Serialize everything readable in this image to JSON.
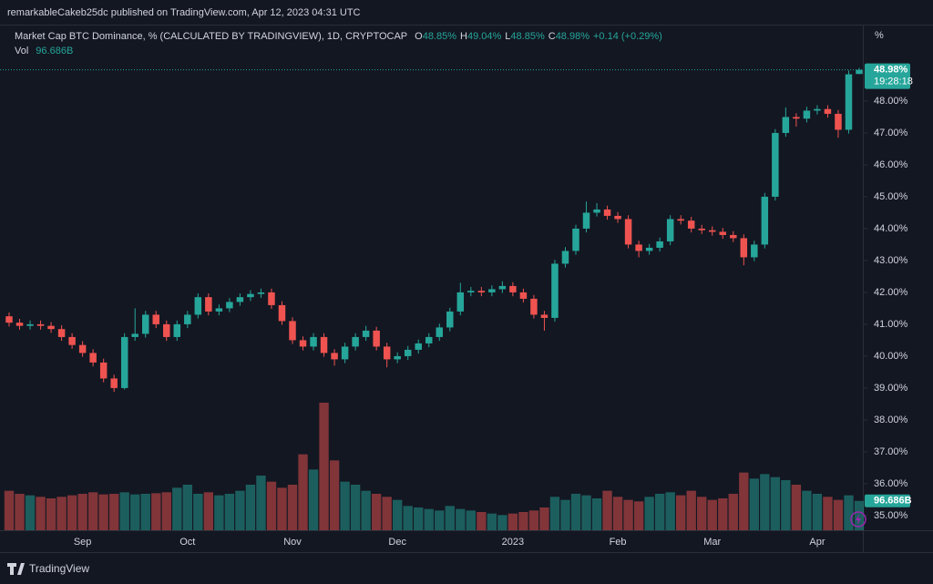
{
  "header": {
    "publisher": "remarkableCakeb25dc published on TradingView.com, Apr 12, 2023 04:31 UTC",
    "brand": "TradingView"
  },
  "chart_data": {
    "type": "candlestick",
    "title": "Market Cap BTC Dominance, % (CALCULATED BY TRADINGVIEW), 1D, CRYPTOCAP",
    "legend": [
      {
        "key": "O",
        "label": "48.85%"
      },
      {
        "key": "H",
        "label": "49.04%"
      },
      {
        "key": "L",
        "label": "48.85%"
      },
      {
        "key": "C",
        "label": "48.98%"
      }
    ],
    "change": "+0.14 (+0.29%)",
    "volume_name": "Vol",
    "volume_legend": "96.686B",
    "y_unit": "%",
    "up_color": "#26a69a",
    "down_color": "#ef5350",
    "categories": [
      null,
      null,
      null,
      null,
      null,
      null,
      null,
      "Sep",
      null,
      null,
      null,
      null,
      null,
      null,
      null,
      null,
      null,
      "Oct",
      null,
      null,
      null,
      null,
      null,
      null,
      null,
      null,
      null,
      "Nov",
      null,
      null,
      null,
      null,
      null,
      null,
      null,
      null,
      null,
      "Dec",
      null,
      null,
      null,
      null,
      null,
      null,
      null,
      null,
      null,
      null,
      "2023",
      null,
      null,
      null,
      null,
      null,
      null,
      null,
      null,
      null,
      "Feb",
      null,
      null,
      null,
      null,
      null,
      null,
      null,
      null,
      "Mar",
      null,
      null,
      null,
      null,
      null,
      null,
      null,
      null,
      null,
      "Apr",
      null,
      null,
      null,
      null
    ],
    "open": [
      41.25,
      41.05,
      40.95,
      41.0,
      40.95,
      40.85,
      40.6,
      40.35,
      40.1,
      39.8,
      39.3,
      39.0,
      40.6,
      40.7,
      41.3,
      41.0,
      40.6,
      41.0,
      41.3,
      41.85,
      41.4,
      41.5,
      41.7,
      41.85,
      41.95,
      42.0,
      41.6,
      41.1,
      40.5,
      40.3,
      40.6,
      40.1,
      39.9,
      40.3,
      40.6,
      40.8,
      40.3,
      39.9,
      40.0,
      40.2,
      40.4,
      40.6,
      40.9,
      41.4,
      42.0,
      42.05,
      42.0,
      42.1,
      42.2,
      42.0,
      41.8,
      41.3,
      41.2,
      42.9,
      43.3,
      44.0,
      44.5,
      44.6,
      44.4,
      44.3,
      43.5,
      43.3,
      43.4,
      43.6,
      44.3,
      44.25,
      44.0,
      43.95,
      43.9,
      43.8,
      43.7,
      43.1,
      43.5,
      45.0,
      47.0,
      47.5,
      47.45,
      47.7,
      47.75,
      47.6,
      47.1,
      48.85
    ],
    "high": [
      41.37,
      41.17,
      41.12,
      41.12,
      41.07,
      40.97,
      40.72,
      40.47,
      40.22,
      39.92,
      39.42,
      40.72,
      41.5,
      41.42,
      41.42,
      41.12,
      41.12,
      41.42,
      41.97,
      41.97,
      41.62,
      41.82,
      41.97,
      42.07,
      42.12,
      42.12,
      41.72,
      41.22,
      40.62,
      40.72,
      40.72,
      40.22,
      40.42,
      40.72,
      40.95,
      40.92,
      40.42,
      40.12,
      40.32,
      40.52,
      40.72,
      41.02,
      41.52,
      42.3,
      42.17,
      42.17,
      42.22,
      42.35,
      42.32,
      42.12,
      41.92,
      41.42,
      43.02,
      43.42,
      44.12,
      44.85,
      44.8,
      44.72,
      44.52,
      44.42,
      43.62,
      43.52,
      43.72,
      44.42,
      44.42,
      44.37,
      44.12,
      44.07,
      44.02,
      43.92,
      43.82,
      43.62,
      45.12,
      47.12,
      47.8,
      47.62,
      47.82,
      47.87,
      47.87,
      47.72,
      48.96,
      49.04
    ],
    "low": [
      40.93,
      40.83,
      40.83,
      40.83,
      40.73,
      40.48,
      40.23,
      39.98,
      39.68,
      39.18,
      38.88,
      38.95,
      40.48,
      40.58,
      40.88,
      40.48,
      40.48,
      40.88,
      41.18,
      41.28,
      41.28,
      41.38,
      41.58,
      41.73,
      41.83,
      41.48,
      40.98,
      40.38,
      40.18,
      40.18,
      39.98,
      39.7,
      39.78,
      40.18,
      40.48,
      40.18,
      39.65,
      39.78,
      39.88,
      40.08,
      40.28,
      40.48,
      40.78,
      41.28,
      41.88,
      41.88,
      41.88,
      41.98,
      41.88,
      41.68,
      41.18,
      40.8,
      41.08,
      42.78,
      43.18,
      43.88,
      44.38,
      44.28,
      44.18,
      43.38,
      43.1,
      43.18,
      43.28,
      43.48,
      44.13,
      43.88,
      43.83,
      43.78,
      43.68,
      43.58,
      42.85,
      42.98,
      43.38,
      44.88,
      46.88,
      47.2,
      47.33,
      47.58,
      47.48,
      46.85,
      46.98,
      48.85
    ],
    "close": [
      41.05,
      40.95,
      41.0,
      40.95,
      40.85,
      40.6,
      40.35,
      40.1,
      39.8,
      39.3,
      39.0,
      40.6,
      40.7,
      41.3,
      41.0,
      40.6,
      41.0,
      41.3,
      41.85,
      41.4,
      41.5,
      41.7,
      41.85,
      41.95,
      42.0,
      41.6,
      41.1,
      40.5,
      40.3,
      40.6,
      40.1,
      39.9,
      40.3,
      40.6,
      40.8,
      40.3,
      39.9,
      40.0,
      40.2,
      40.4,
      40.6,
      40.9,
      41.4,
      42.0,
      42.05,
      42.0,
      42.1,
      42.2,
      42.0,
      41.8,
      41.3,
      41.2,
      42.9,
      43.3,
      44.0,
      44.5,
      44.6,
      44.4,
      44.3,
      43.5,
      43.3,
      43.4,
      43.6,
      44.3,
      44.25,
      44.0,
      43.95,
      43.9,
      43.8,
      43.7,
      43.1,
      43.5,
      45.0,
      47.0,
      47.5,
      47.45,
      47.7,
      47.75,
      47.6,
      47.1,
      48.84,
      48.98
    ],
    "volume": [
      130,
      120,
      115,
      110,
      105,
      110,
      115,
      120,
      125,
      118,
      120,
      125,
      118,
      120,
      122,
      125,
      140,
      150,
      120,
      125,
      115,
      120,
      130,
      150,
      180,
      160,
      140,
      150,
      250,
      200,
      420,
      230,
      160,
      150,
      130,
      120,
      110,
      100,
      80,
      75,
      70,
      65,
      80,
      70,
      65,
      60,
      55,
      50,
      55,
      60,
      65,
      75,
      110,
      100,
      120,
      115,
      105,
      130,
      110,
      100,
      95,
      110,
      120,
      125,
      115,
      130,
      110,
      100,
      105,
      120,
      190,
      170,
      185,
      175,
      165,
      150,
      130,
      120,
      110,
      100,
      115,
      96.686
    ],
    "last_price_label": "48.98%",
    "countdown": "19:28:18",
    "ylim": [
      34.54,
      50.37
    ],
    "yticks": [
      {
        "value": 35,
        "label": "35.00%"
      },
      {
        "value": 36,
        "label": "36.00%"
      },
      {
        "value": 37,
        "label": "37.00%"
      },
      {
        "value": 38,
        "label": "38.00%"
      },
      {
        "value": 39,
        "label": "39.00%"
      },
      {
        "value": 40,
        "label": "40.00%"
      },
      {
        "value": 41,
        "label": "41.00%"
      },
      {
        "value": 42,
        "label": "42.00%"
      },
      {
        "value": 43,
        "label": "43.00%"
      },
      {
        "value": 44,
        "label": "44.00%"
      },
      {
        "value": 45,
        "label": "45.00%"
      },
      {
        "value": 46,
        "label": "46.00%"
      },
      {
        "value": 47,
        "label": "47.00%"
      },
      {
        "value": 48,
        "label": "48.00%"
      }
    ]
  }
}
